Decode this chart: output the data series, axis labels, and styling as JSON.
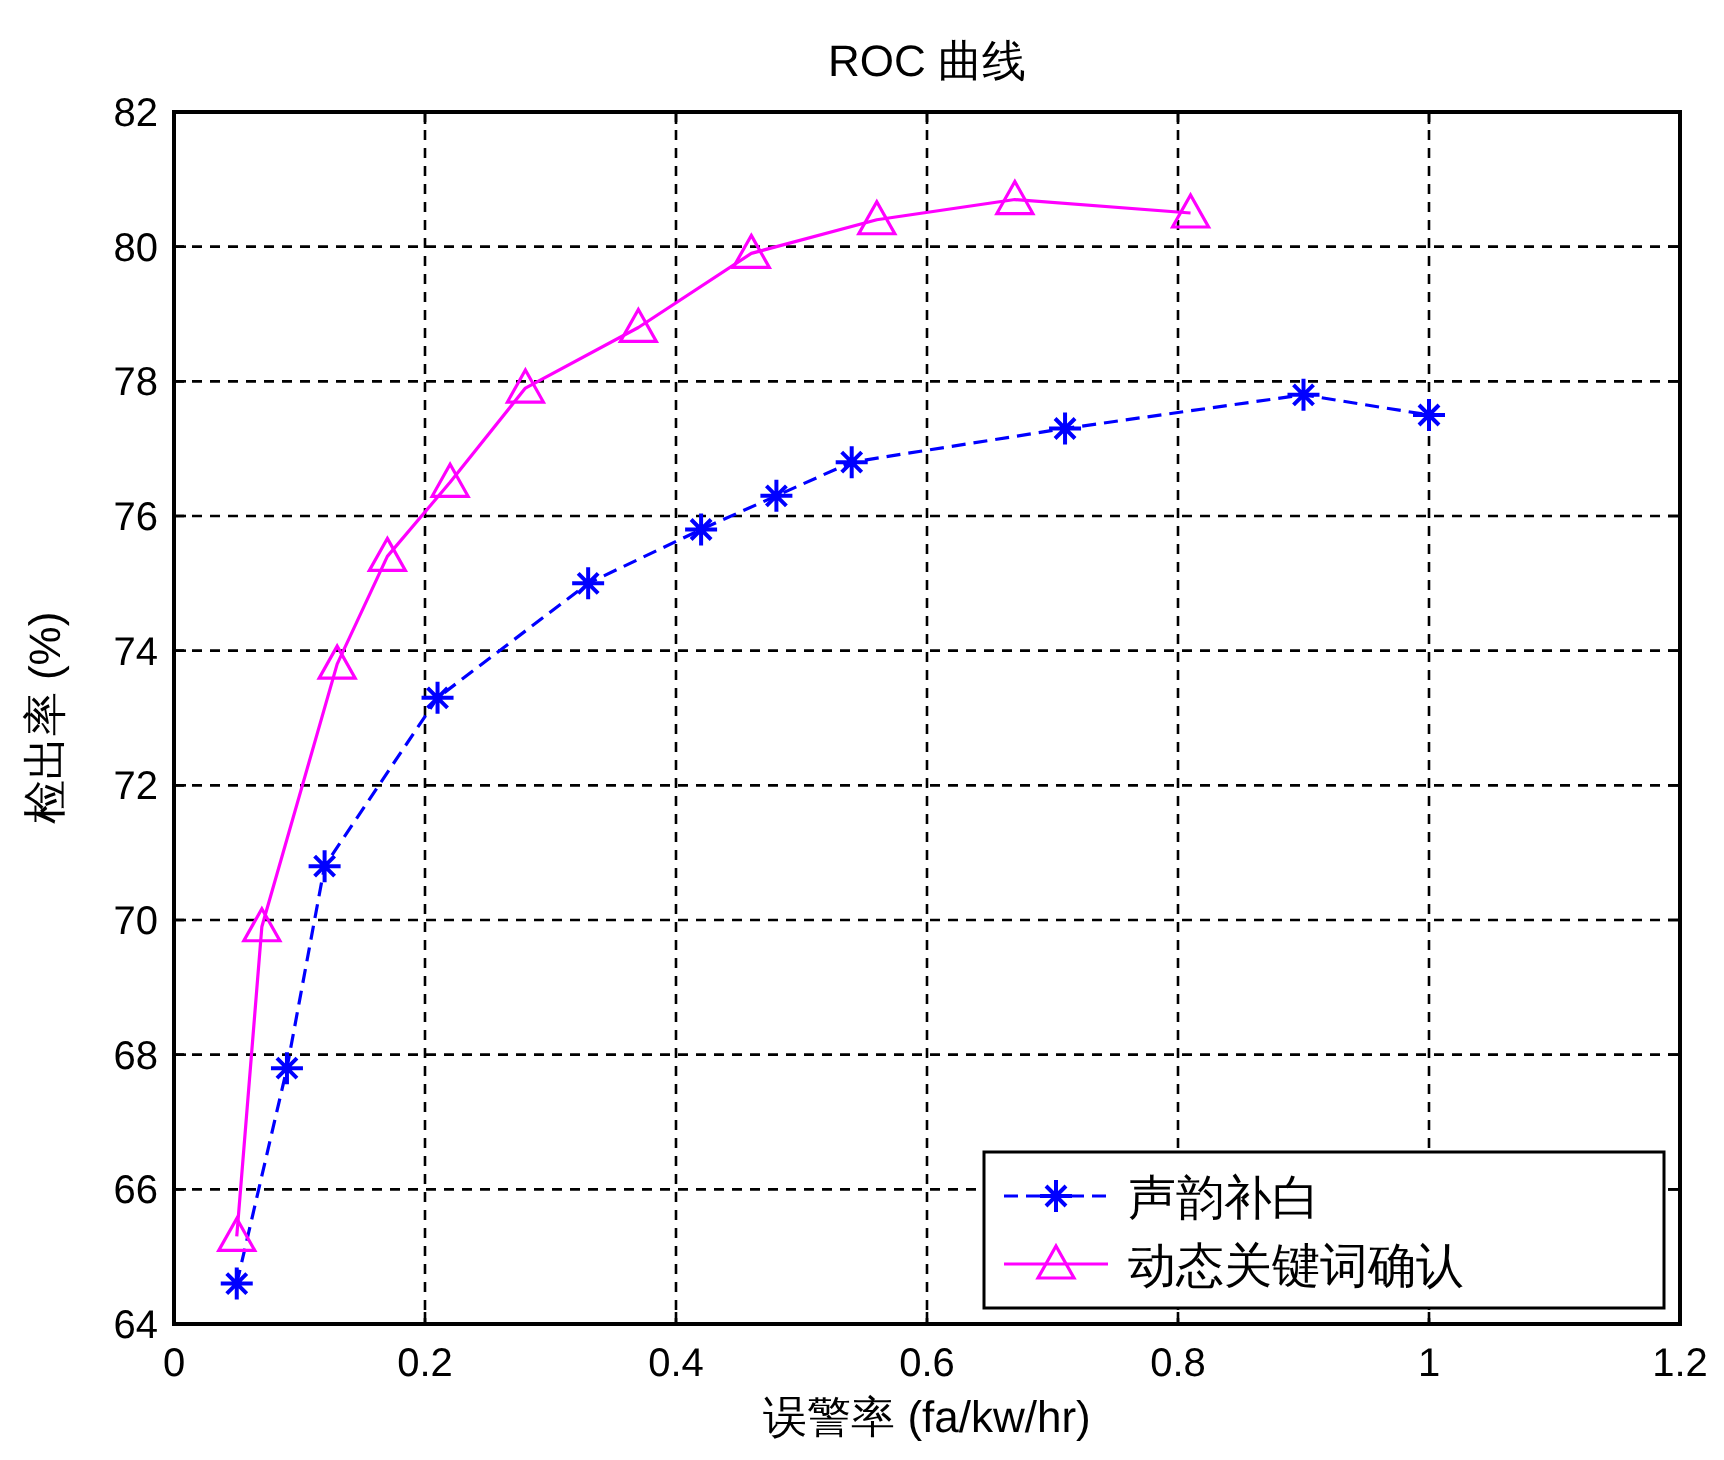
{
  "chart_data": {
    "type": "line",
    "title": "ROC 曲线",
    "xlabel": "误警率 (fa/kw/hr)",
    "ylabel": "检出率 (%)",
    "xlim": [
      0,
      1.2
    ],
    "xticks": [
      0,
      0.2,
      0.4,
      0.6,
      0.8,
      1,
      1.2
    ],
    "ylim": [
      64,
      82
    ],
    "yticks": [
      64,
      66,
      68,
      70,
      72,
      74,
      76,
      78,
      80,
      82
    ],
    "grid": true,
    "legend": "bottom right",
    "series": [
      {
        "name": "声韵补白",
        "color": "#0000ff",
        "marker": "cross",
        "line_style": "dashed",
        "x": [
          0.05,
          0.09,
          0.12,
          0.21,
          0.33,
          0.42,
          0.48,
          0.54,
          0.71,
          0.9,
          1.0
        ],
        "values": [
          64.6,
          67.8,
          70.8,
          73.3,
          75.0,
          75.8,
          76.3,
          76.8,
          77.3,
          77.8,
          77.5
        ]
      },
      {
        "name": "动态关键词确认",
        "color": "#ff00ff",
        "marker": "triangle",
        "line_style": "solid",
        "x": [
          0.05,
          0.07,
          0.13,
          0.17,
          0.22,
          0.28,
          0.37,
          0.46,
          0.56,
          0.67,
          0.81
        ],
        "values": [
          65.3,
          69.9,
          73.8,
          75.4,
          76.5,
          77.9,
          78.8,
          79.9,
          80.4,
          80.7,
          80.5
        ]
      }
    ]
  }
}
